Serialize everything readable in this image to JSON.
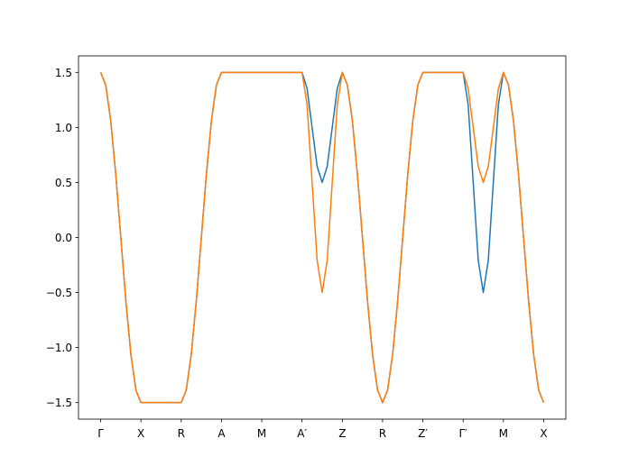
{
  "chart_data": {
    "type": "line",
    "x": [
      0,
      0.125,
      0.25,
      0.375,
      0.5,
      0.625,
      0.75,
      0.875,
      1,
      1.125,
      1.25,
      1.375,
      1.5,
      1.625,
      1.75,
      1.875,
      2,
      2.125,
      2.25,
      2.375,
      2.5,
      2.625,
      2.75,
      2.875,
      3,
      3.125,
      3.25,
      3.375,
      3.5,
      3.625,
      3.75,
      3.875,
      4,
      4.125,
      4.25,
      4.375,
      4.5,
      4.625,
      4.75,
      4.875,
      5,
      5.125,
      5.25,
      5.375,
      5.5,
      5.625,
      5.75,
      5.875,
      6,
      6.125,
      6.25,
      6.375,
      6.5,
      6.625,
      6.75,
      6.875,
      7,
      7.125,
      7.25,
      7.375,
      7.5,
      7.625,
      7.75,
      7.875,
      8,
      8.125,
      8.25,
      8.375,
      8.5,
      8.625,
      8.75,
      8.875,
      9,
      9.125,
      9.25,
      9.375,
      9.5,
      9.625,
      9.75,
      9.875,
      10,
      10.125,
      10.25,
      10.375,
      10.5,
      10.625,
      10.75,
      10.875,
      11
    ],
    "series": [
      {
        "color": "#1f77b4",
        "values": [
          1.5,
          1.386,
          1.061,
          0.574,
          0,
          -0.574,
          -1.061,
          -1.386,
          -1.5,
          -1.5,
          -1.5,
          -1.5,
          -1.5,
          -1.5,
          -1.5,
          -1.5,
          -1.5,
          -1.386,
          -1.061,
          -0.574,
          0,
          0.574,
          1.061,
          1.386,
          1.5,
          1.5,
          1.5,
          1.5,
          1.5,
          1.5,
          1.5,
          1.5,
          1.5,
          1.5,
          1.5,
          1.5,
          1.5,
          1.5,
          1.5,
          1.5,
          1.5,
          1.354,
          1.0,
          0.646,
          0.5,
          0.646,
          1.0,
          1.354,
          1.5,
          1.386,
          1.061,
          0.574,
          0,
          -0.574,
          -1.061,
          -1.386,
          -1.5,
          -1.386,
          -1.061,
          -0.574,
          0,
          0.574,
          1.061,
          1.386,
          1.5,
          1.5,
          1.5,
          1.5,
          1.5,
          1.5,
          1.5,
          1.5,
          1.5,
          1.207,
          0.5,
          -0.207,
          -0.5,
          -0.207,
          0.5,
          1.207,
          1.5,
          1.386,
          1.061,
          0.574,
          0,
          -0.574,
          -1.061,
          -1.386,
          -1.5
        ]
      },
      {
        "color": "#ff7f0e",
        "values": [
          1.5,
          1.386,
          1.061,
          0.574,
          0,
          -0.574,
          -1.061,
          -1.386,
          -1.5,
          -1.5,
          -1.5,
          -1.5,
          -1.5,
          -1.5,
          -1.5,
          -1.5,
          -1.5,
          -1.386,
          -1.061,
          -0.574,
          0,
          0.574,
          1.061,
          1.386,
          1.5,
          1.5,
          1.5,
          1.5,
          1.5,
          1.5,
          1.5,
          1.5,
          1.5,
          1.5,
          1.5,
          1.5,
          1.5,
          1.5,
          1.5,
          1.5,
          1.5,
          1.207,
          0.5,
          -0.207,
          -0.5,
          -0.207,
          0.5,
          1.207,
          1.5,
          1.386,
          1.061,
          0.574,
          0,
          -0.574,
          -1.061,
          -1.386,
          -1.5,
          -1.386,
          -1.061,
          -0.574,
          0,
          0.574,
          1.061,
          1.386,
          1.5,
          1.5,
          1.5,
          1.5,
          1.5,
          1.5,
          1.5,
          1.5,
          1.5,
          1.354,
          1.0,
          0.646,
          0.5,
          0.646,
          1.0,
          1.354,
          1.5,
          1.386,
          1.061,
          0.574,
          0,
          -0.574,
          -1.061,
          -1.386,
          -1.5
        ]
      }
    ],
    "xlim": [
      -0.55,
      11.55
    ],
    "ylim": [
      -1.65,
      1.65
    ],
    "xticks": [
      {
        "value": 0,
        "label": "Γ"
      },
      {
        "value": 1,
        "label": "X"
      },
      {
        "value": 2,
        "label": "R"
      },
      {
        "value": 3,
        "label": "A"
      },
      {
        "value": 4,
        "label": "M"
      },
      {
        "value": 5,
        "label": "A′"
      },
      {
        "value": 6,
        "label": "Z"
      },
      {
        "value": 7,
        "label": "R"
      },
      {
        "value": 8,
        "label": "Z′"
      },
      {
        "value": 9,
        "label": "Γ′"
      },
      {
        "value": 10,
        "label": "M"
      },
      {
        "value": 11,
        "label": "X"
      }
    ],
    "yticks": [
      {
        "value": -1.5,
        "label": "−1.5"
      },
      {
        "value": -1,
        "label": "−1.0"
      },
      {
        "value": -0.5,
        "label": "−0.5"
      },
      {
        "value": 0,
        "label": "0.0"
      },
      0.5,
      {
        "value": 1,
        "label": "1.0"
      },
      1.5
    ]
  }
}
